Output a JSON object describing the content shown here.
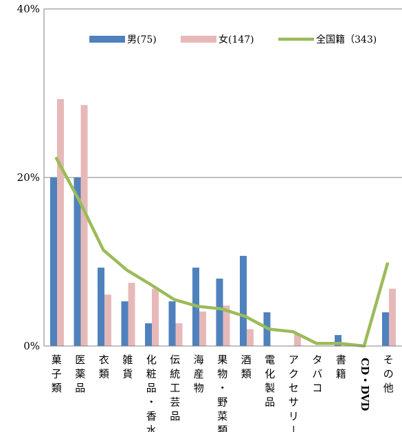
{
  "chart_data": {
    "type": "bar",
    "title": "",
    "xlabel": "",
    "ylabel": "",
    "ylim": [
      0,
      40
    ],
    "y_ticks": [
      "0%",
      "20%",
      "40%"
    ],
    "y_tick_values": [
      0,
      20,
      40
    ],
    "grid": true,
    "legend_position": "top-right",
    "categories": [
      "菓子類",
      "医薬品",
      "衣類",
      "雑貨",
      "化粧品・香水",
      "伝統工芸品",
      "海産物",
      "果物・野菜類",
      "酒類",
      "電化製品",
      "アクセサリー",
      "タバコ",
      "書籍",
      "CD・DVD",
      "その他"
    ],
    "series": [
      {
        "name": "男(75)",
        "type": "bar",
        "color": "#4f81bd",
        "values": [
          20.0,
          20.0,
          9.3,
          5.3,
          2.7,
          5.3,
          9.3,
          8.0,
          10.7,
          4.0,
          0.0,
          0.0,
          1.3,
          0.0,
          4.0
        ]
      },
      {
        "name": "女(147)",
        "type": "bar",
        "color": "#e6b9b8",
        "values": [
          29.3,
          28.6,
          6.1,
          7.5,
          6.8,
          2.7,
          4.1,
          4.8,
          2.0,
          0.0,
          1.4,
          0.0,
          0.0,
          0.0,
          6.8
        ]
      },
      {
        "name": "全国籍（343)",
        "type": "line",
        "color": "#9bbb59",
        "values": [
          22.4,
          17.2,
          11.4,
          9.0,
          7.3,
          5.5,
          4.7,
          4.4,
          3.5,
          2.0,
          1.7,
          0.3,
          0.3,
          0.0,
          9.9
        ]
      }
    ]
  }
}
